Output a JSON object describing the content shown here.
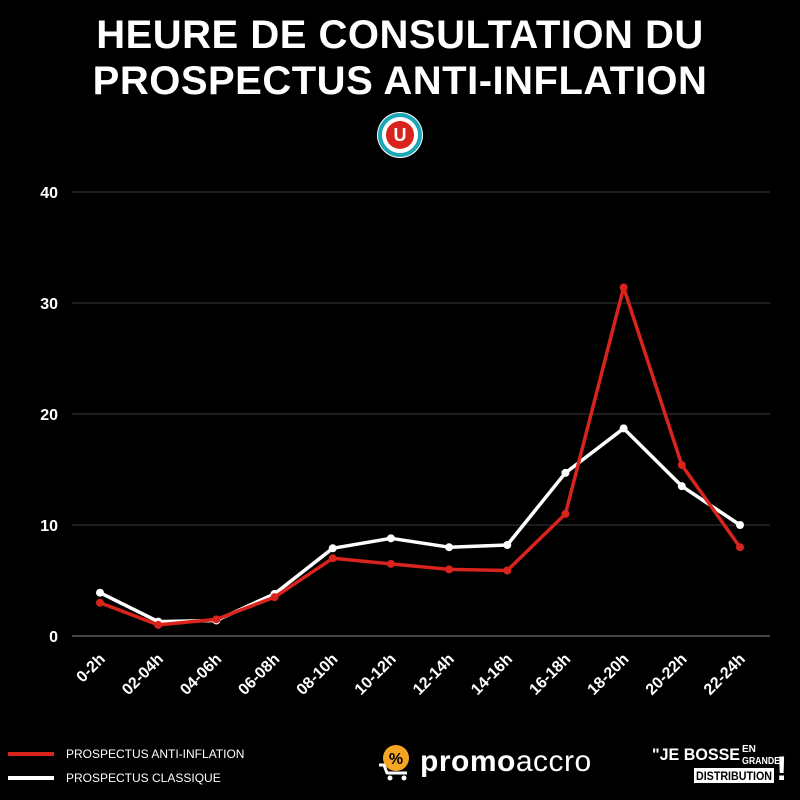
{
  "header": {
    "title_line1": "HEURE DE CONSULTATION DU",
    "title_line2": "PROSPECTUS ANTI-INFLATION",
    "brand_logo_letter": "U"
  },
  "chart_data": {
    "type": "line",
    "categories": [
      "0-2h",
      "02-04h",
      "04-06h",
      "06-08h",
      "08-10h",
      "10-12h",
      "12-14h",
      "14-16h",
      "16-18h",
      "18-20h",
      "20-22h",
      "22-24h"
    ],
    "series": [
      {
        "name": "PROSPECTUS ANTI-INFLATION",
        "color": "#d9231d",
        "values": [
          3.0,
          1.0,
          1.5,
          3.5,
          7.0,
          6.5,
          6.0,
          5.9,
          11.0,
          31.4,
          15.4,
          8.0
        ]
      },
      {
        "name": "PROSPECTUS CLASSIQUE",
        "color": "#ffffff",
        "values": [
          3.9,
          1.3,
          1.4,
          3.8,
          7.9,
          8.8,
          8.0,
          8.2,
          14.7,
          18.7,
          13.5,
          10.0
        ]
      }
    ],
    "yticks": [
      "0",
      "10",
      "20",
      "30",
      "40"
    ],
    "ylim": [
      0,
      40
    ],
    "grid": true,
    "legend_position": "bottom-left"
  },
  "footer": {
    "promo_brand_bold": "promo",
    "promo_brand_light": "accro",
    "promo_icon_glyph": "%",
    "jb_line1": "\"JE BOSSE",
    "jb_en": "EN",
    "jb_grande": "GRANDE",
    "jb_line2": "DISTRIBUTION",
    "jb_bang": "!"
  },
  "colors": {
    "background": "#000000",
    "red": "#d9231d",
    "white": "#ffffff",
    "grid": "#3a3a3a",
    "u_logo_teal": "#1aa6b7"
  }
}
